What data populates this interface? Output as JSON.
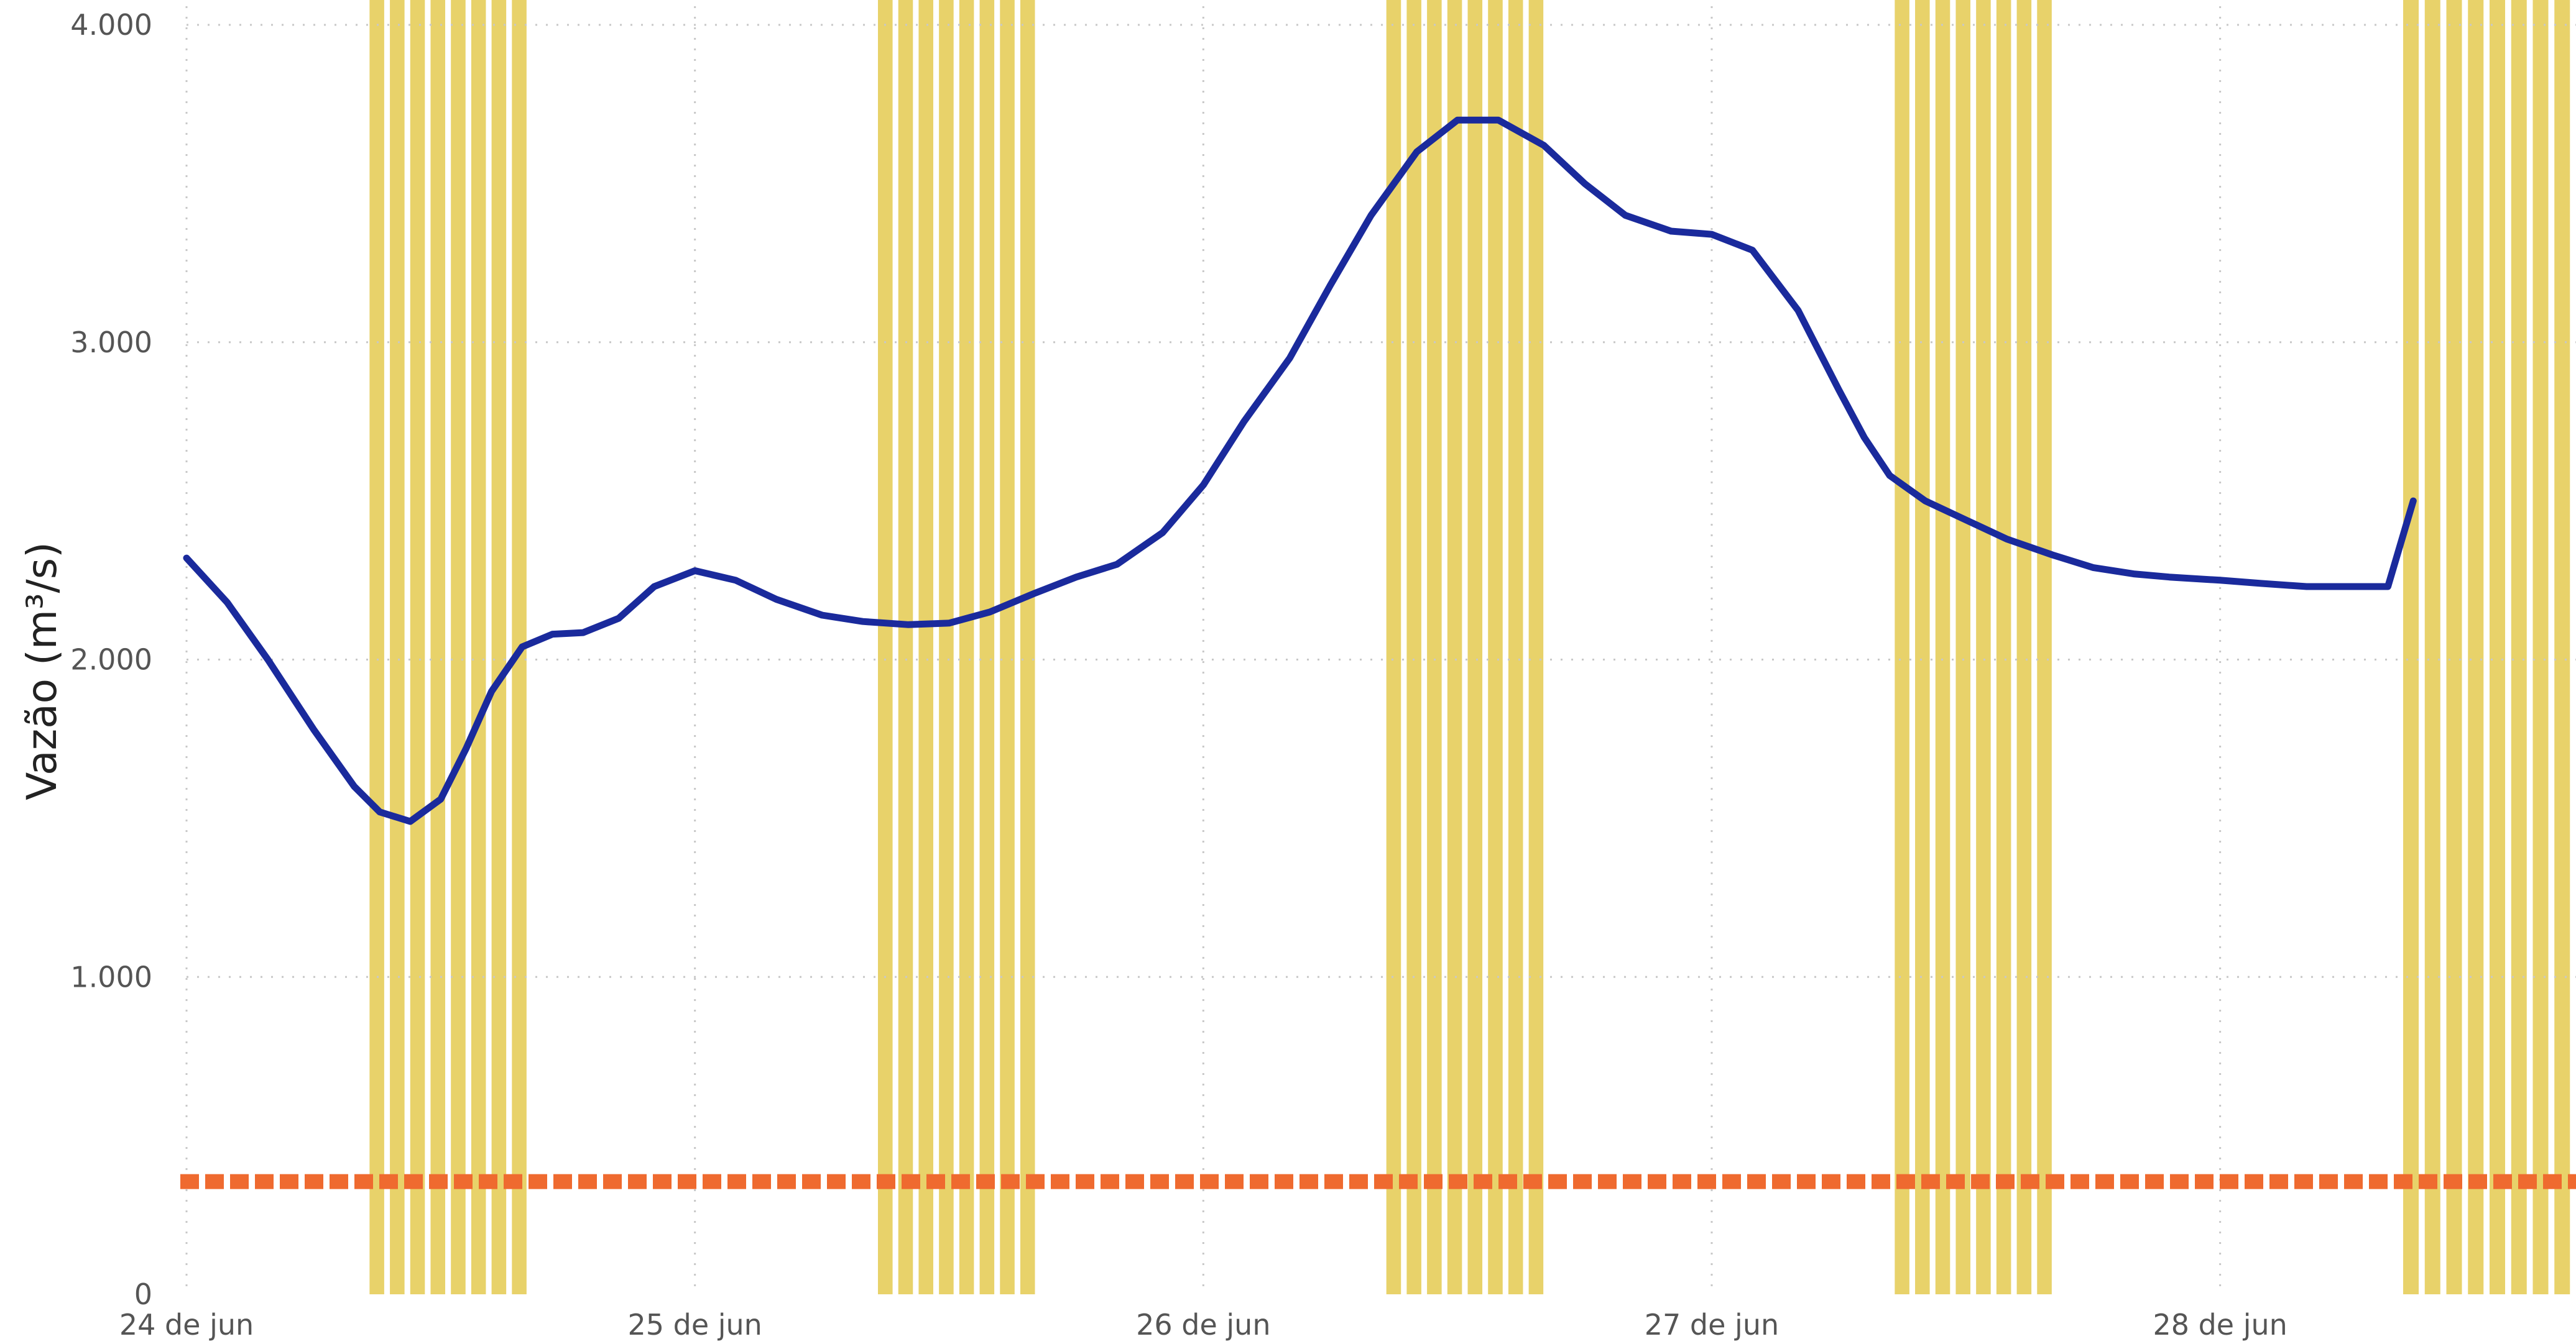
{
  "chart_data": {
    "type": "line",
    "ylabel": "Vazão (m³/s)",
    "ylim": [
      0,
      4000
    ],
    "y_ticks": [
      {
        "value": 0,
        "label": "0"
      },
      {
        "value": 1000,
        "label": "1.000"
      },
      {
        "value": 2000,
        "label": "2.000"
      },
      {
        "value": 3000,
        "label": "3.000"
      },
      {
        "value": 4000,
        "label": "4.000"
      }
    ],
    "xlim": [
      0,
      4.7
    ],
    "x_unit": "days after 24 de jun 00:00",
    "x_ticks": [
      {
        "value": 0,
        "label": "24 de jun"
      },
      {
        "value": 1,
        "label": "25 de jun"
      },
      {
        "value": 2,
        "label": "26 de jun"
      },
      {
        "value": 3,
        "label": "27 de jun"
      },
      {
        "value": 4,
        "label": "28 de jun"
      }
    ],
    "grid": true,
    "series": [
      {
        "color": "#1a2a9c",
        "x": [
          0,
          0.08,
          0.16,
          0.25,
          0.33,
          0.38,
          0.44,
          0.5,
          0.55,
          0.6,
          0.66,
          0.72,
          0.78,
          0.85,
          0.92,
          1.0,
          1.08,
          1.16,
          1.25,
          1.33,
          1.42,
          1.5,
          1.58,
          1.67,
          1.75,
          1.83,
          1.92,
          2.0,
          2.08,
          2.17,
          2.25,
          2.33,
          2.42,
          2.5,
          2.58,
          2.67,
          2.75,
          2.83,
          2.92,
          3.0,
          3.08,
          3.17,
          3.25,
          3.3,
          3.35,
          3.42,
          3.5,
          3.58,
          3.67,
          3.75,
          3.83,
          3.9,
          4.0,
          4.08,
          4.17,
          4.25,
          4.33,
          4.38
        ],
        "values": [
          2320,
          2180,
          2000,
          1780,
          1600,
          1520,
          1490,
          1560,
          1720,
          1900,
          2040,
          2080,
          2085,
          2130,
          2230,
          2280,
          2250,
          2190,
          2140,
          2120,
          2110,
          2115,
          2150,
          2210,
          2260,
          2300,
          2400,
          2550,
          2750,
          2950,
          3180,
          3400,
          3600,
          3700,
          3700,
          3620,
          3500,
          3400,
          3350,
          3340,
          3290,
          3100,
          2850,
          2700,
          2580,
          2500,
          2440,
          2380,
          2330,
          2290,
          2270,
          2260,
          2250,
          2240,
          2230,
          2230,
          2230,
          2500
        ]
      },
      {
        "color": "#ef6a2f",
        "style": "dashed",
        "constant": 355
      }
    ],
    "bands": {
      "color": "#e8d26a",
      "stripes_per_band": 8,
      "ranges": [
        [
          0.36,
          0.68
        ],
        [
          1.36,
          1.68
        ],
        [
          2.36,
          2.68
        ],
        [
          3.36,
          3.68
        ],
        [
          4.36,
          4.7
        ]
      ]
    }
  }
}
